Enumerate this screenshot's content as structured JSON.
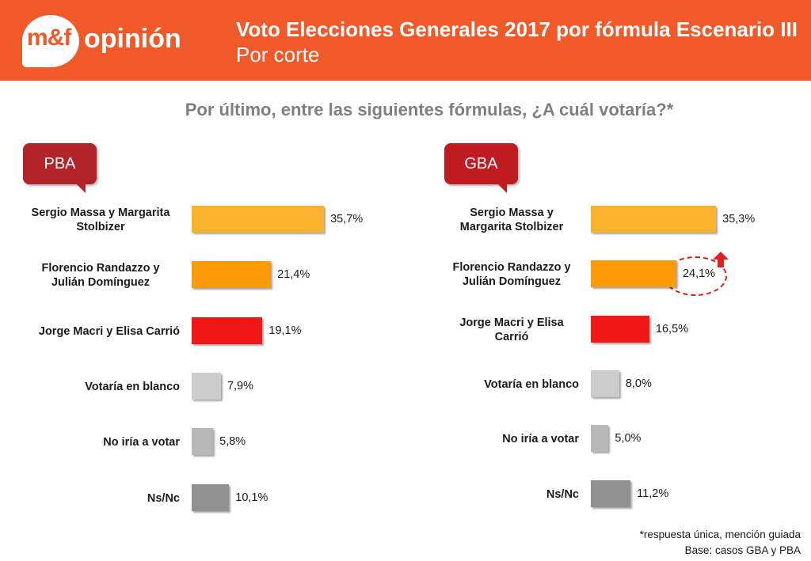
{
  "header": {
    "logo_mf": "m&f",
    "logo_word": "opinión",
    "title": "Voto Elecciones Generales 2017 por fórmula Escenario III",
    "subtitle": "Por corte"
  },
  "question": "Por último, entre las siguientes fórmulas, ¿A cuál votaría?*",
  "colors": {
    "header": "#f05a2a",
    "massa": "#fbb32d",
    "randazzo": "#fd9a07",
    "macri": "#f01717",
    "blanco": "#cccccc",
    "no_votar": "#b7b7b7",
    "nsnc": "#909090"
  },
  "chart_data": [
    {
      "type": "bar",
      "orientation": "horizontal",
      "tag": "PBA",
      "categories": [
        "Sergio Massa y Margarita Stolbizer",
        "Florencio Randazzo y Julián Domínguez",
        "Jorge Macri y Elisa Carrió",
        "Votaría en blanco",
        "No iría a votar",
        "Ns/Nc"
      ],
      "values": [
        35.7,
        21.4,
        19.1,
        7.9,
        5.8,
        10.1
      ],
      "value_labels": [
        "35,7%",
        "21,4%",
        "19,1%",
        "7,9%",
        "5,8%",
        "10,1%"
      ],
      "xlim": [
        0,
        40
      ]
    },
    {
      "type": "bar",
      "orientation": "horizontal",
      "tag": "GBA",
      "categories": [
        "Sergio Massa y Margarita Stolbizer",
        "Florencio Randazzo y Julián Domínguez",
        "Jorge Macri y Elisa Carrió",
        "Votaría en blanco",
        "No iría a votar",
        "Ns/Nc"
      ],
      "values": [
        35.3,
        24.1,
        16.5,
        8.0,
        5.0,
        11.2
      ],
      "value_labels": [
        "35,3%",
        "24,1%",
        "16,5%",
        "8,0%",
        "5,0%",
        "11,2%"
      ],
      "xlim": [
        0,
        40
      ],
      "annotation": {
        "category_index": 1,
        "marker": "dashed-circle-with-up-arrow"
      }
    }
  ],
  "footnotes": {
    "line1": "*respuesta única, mención guiada",
    "line2": "Base: casos GBA y PBA"
  }
}
